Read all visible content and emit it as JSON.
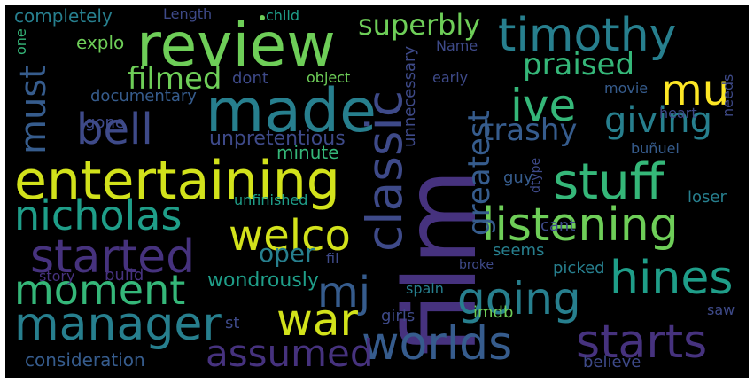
{
  "background": "#000000",
  "palette": {
    "purple": "#46327e",
    "indigo": "#3e4a89",
    "blue": "#365c8d",
    "teal": "#277f8e",
    "cyan": "#1f9e89",
    "green": "#35b779",
    "lime": "#6ece58",
    "yellow": "#d2e21b",
    "bright": "#fde725"
  },
  "words": [
    {
      "text": "film",
      "color": "#46327e"
    },
    {
      "text": "review",
      "color": "#6ece58"
    },
    {
      "text": "made",
      "color": "#277f8e"
    },
    {
      "text": "entertaining",
      "color": "#d2e21b"
    },
    {
      "text": "classic",
      "color": "#3e4a89"
    },
    {
      "text": "timothy",
      "color": "#277f8e"
    },
    {
      "text": "stuff",
      "color": "#35b779"
    },
    {
      "text": "listening",
      "color": "#6ece58"
    },
    {
      "text": "nicholas",
      "color": "#1f9e89"
    },
    {
      "text": "started",
      "color": "#46327e"
    },
    {
      "text": "manager",
      "color": "#277f8e"
    },
    {
      "text": "moment",
      "color": "#35b779"
    },
    {
      "text": "welco",
      "color": "#d2e21b"
    },
    {
      "text": "hines",
      "color": "#1f9e89"
    },
    {
      "text": "starts",
      "color": "#46327e"
    },
    {
      "text": "worlds",
      "color": "#365c8d"
    },
    {
      "text": "going",
      "color": "#277f8e"
    },
    {
      "text": "war",
      "color": "#d2e21b"
    },
    {
      "text": "assumed",
      "color": "#46327e"
    },
    {
      "text": "mj",
      "color": "#365c8d"
    },
    {
      "text": "bell",
      "color": "#3e4a89"
    },
    {
      "text": "ive",
      "color": "#35b779"
    },
    {
      "text": "giving",
      "color": "#277f8e"
    },
    {
      "text": "mu",
      "color": "#fde725"
    },
    {
      "text": "must",
      "color": "#365c8d"
    },
    {
      "text": "praised",
      "color": "#35b779"
    },
    {
      "text": "superbly",
      "color": "#6ece58"
    },
    {
      "text": "greatest",
      "color": "#365c8d"
    },
    {
      "text": "filmed",
      "color": "#6ece58"
    },
    {
      "text": "trashy",
      "color": "#365c8d"
    },
    {
      "text": "oper",
      "color": "#277f8e"
    },
    {
      "text": "wondrously",
      "color": "#1f9e89"
    },
    {
      "text": "unpretentious",
      "color": "#3e4a89"
    },
    {
      "text": "completely",
      "color": "#277f8e"
    },
    {
      "text": "explo",
      "color": "#6ece58"
    },
    {
      "text": "documentary",
      "color": "#365c8d"
    },
    {
      "text": "Length",
      "color": "#3e4a89"
    },
    {
      "text": "child",
      "color": "#1f9e89"
    },
    {
      "text": "Name",
      "color": "#3e4a89"
    },
    {
      "text": "unnecessary",
      "color": "#3e4a89"
    },
    {
      "text": "one",
      "color": "#35b779"
    },
    {
      "text": "dont",
      "color": "#3e4a89"
    },
    {
      "text": "object",
      "color": "#6ece58"
    },
    {
      "text": "early",
      "color": "#3e4a89"
    },
    {
      "text": "heart",
      "color": "#3e4a89"
    },
    {
      "text": "needs",
      "color": "#3e4a89"
    },
    {
      "text": "movie",
      "color": "#365c8d"
    },
    {
      "text": "minute",
      "color": "#35b779"
    },
    {
      "text": "gone",
      "color": "#3e4a89"
    },
    {
      "text": "unfinished",
      "color": "#1f9e89"
    },
    {
      "text": "guy",
      "color": "#365c8d"
    },
    {
      "text": "dtype",
      "color": "#3e4a89"
    },
    {
      "text": "buñuel",
      "color": "#365c8d"
    },
    {
      "text": "loser",
      "color": "#277f8e"
    },
    {
      "text": "cant",
      "color": "#3e4a89"
    },
    {
      "text": "seems",
      "color": "#277f8e"
    },
    {
      "text": "picked",
      "color": "#277f8e"
    },
    {
      "text": "broke",
      "color": "#3e4a89"
    },
    {
      "text": "build",
      "color": "#46327e"
    },
    {
      "text": "fil",
      "color": "#3e4a89"
    },
    {
      "text": "story",
      "color": "#46327e"
    },
    {
      "text": "spain",
      "color": "#277f8e"
    },
    {
      "text": "girls",
      "color": "#3e4a89"
    },
    {
      "text": "imdb",
      "color": "#6ece58"
    },
    {
      "text": "saw",
      "color": "#3e4a89"
    },
    {
      "text": "st",
      "color": "#3e4a89"
    },
    {
      "text": "consideration",
      "color": "#365c8d"
    },
    {
      "text": "believe",
      "color": "#3e4a89"
    }
  ]
}
